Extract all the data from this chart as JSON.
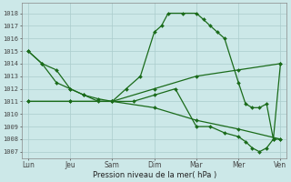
{
  "background_color": "#cce8e8",
  "grid_color": "#aacccc",
  "line_color": "#1a6b1a",
  "xlabel": "Pression niveau de la mer( hPa )",
  "ylim": [
    1006.5,
    1018.8
  ],
  "yticks": [
    1007,
    1008,
    1009,
    1010,
    1011,
    1012,
    1013,
    1014,
    1015,
    1016,
    1017,
    1018
  ],
  "x_labels": [
    "Lun",
    "Jeu",
    "Sam",
    "Dim",
    "Mar",
    "Mer",
    "Ven"
  ],
  "x_positions": [
    0,
    1,
    2,
    3,
    4,
    5,
    6
  ],
  "line1_x": [
    0,
    0.33,
    0.67,
    1.0,
    1.33,
    1.67,
    2.0,
    2.33,
    2.67,
    3.0,
    3.17,
    3.33,
    3.67,
    4.0,
    4.17,
    4.33,
    4.5,
    4.67,
    5.0,
    5.17,
    5.33,
    5.5,
    5.67,
    5.83,
    6.0
  ],
  "line1_y": [
    1015,
    1014,
    1013.5,
    1012,
    1011.5,
    1011,
    1011,
    1012,
    1013,
    1016.5,
    1017,
    1018,
    1018,
    1018,
    1017.5,
    1017,
    1016.5,
    1016,
    1012.5,
    1010.8,
    1010.5,
    1010.5,
    1010.8,
    1008,
    1014
  ],
  "line2_x": [
    0,
    0.33,
    0.67,
    1.0,
    1.33,
    1.67,
    2.0,
    2.5,
    3.0,
    3.5,
    4.0,
    4.33,
    4.67,
    5.0,
    5.17,
    5.33,
    5.5,
    5.67,
    5.83,
    6.0
  ],
  "line2_y": [
    1015,
    1014,
    1012.5,
    1012,
    1011.5,
    1011.2,
    1011,
    1011,
    1011.5,
    1012,
    1009,
    1009,
    1008.5,
    1008.2,
    1007.8,
    1007.3,
    1007,
    1007.3,
    1008,
    1008
  ],
  "line3_x": [
    0,
    1,
    2,
    3,
    4,
    5,
    6
  ],
  "line3_y": [
    1011,
    1011,
    1011,
    1012,
    1013,
    1013.5,
    1014
  ],
  "line4_x": [
    0,
    1,
    2,
    3,
    4,
    5,
    6
  ],
  "line4_y": [
    1011,
    1011,
    1011,
    1010.5,
    1009.5,
    1008.8,
    1008
  ]
}
